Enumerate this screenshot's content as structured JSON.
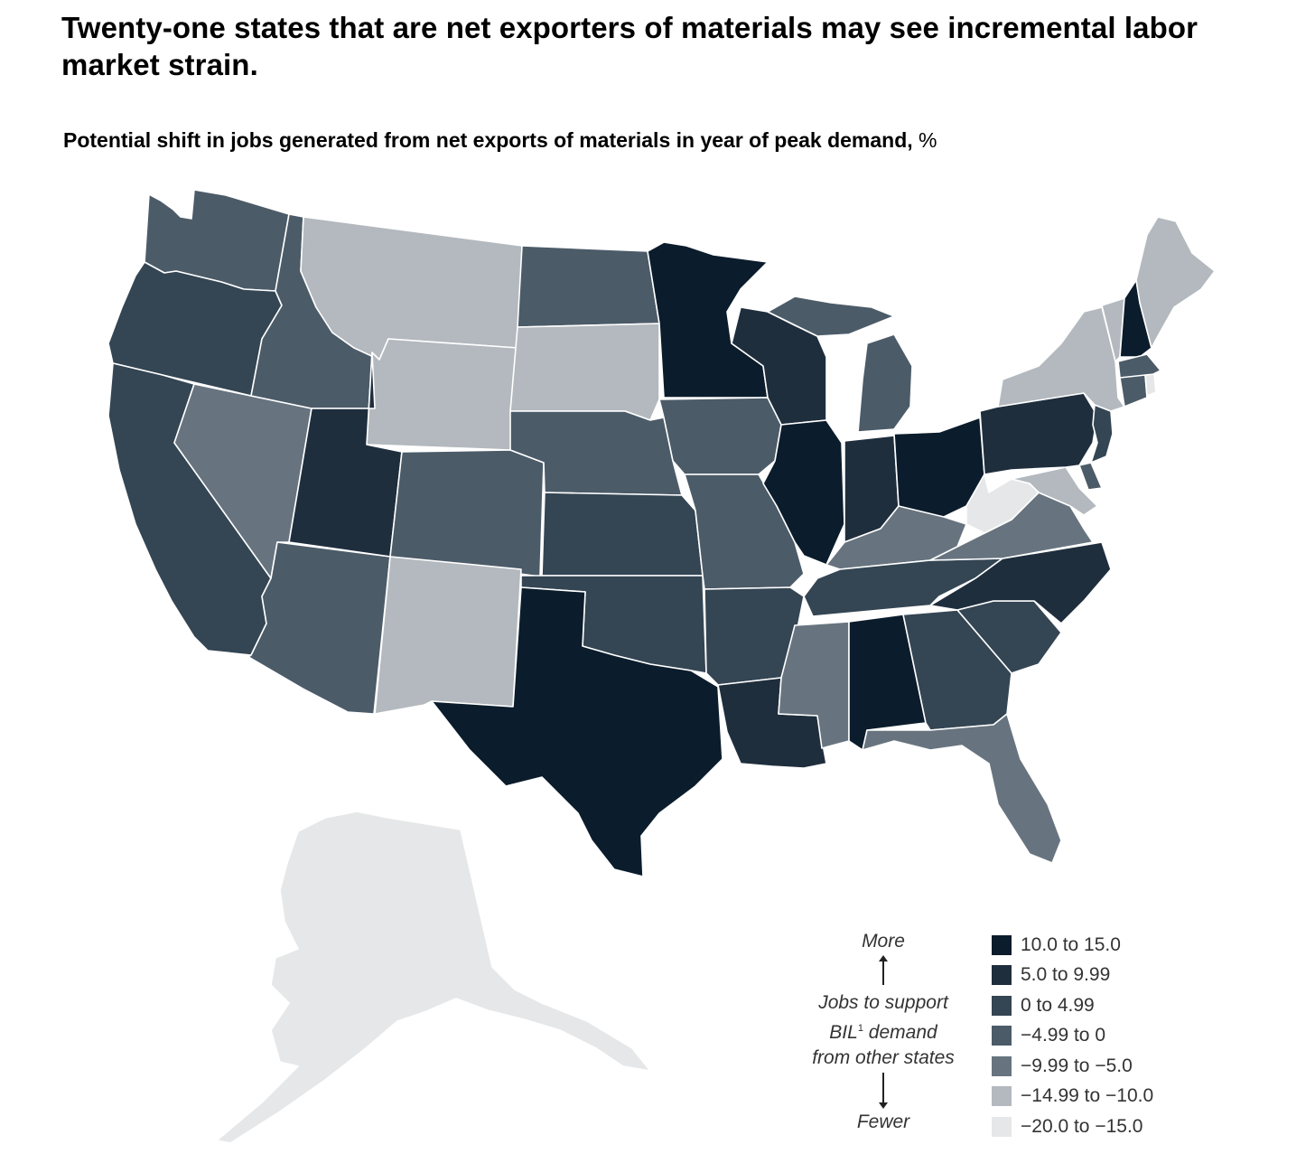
{
  "title": "Twenty-one states that are net exporters of materials may see incremental labor market strain.",
  "subtitle": "Potential shift in jobs generated from net exports of materials in year of peak demand,",
  "subtitle_unit": "%",
  "legend": {
    "more_label": "More",
    "fewer_label": "Fewer",
    "axis_label_line1": "Jobs to support",
    "axis_label_line2_a": "BIL",
    "axis_label_line2_sup": "1",
    "axis_label_line2_b": " demand",
    "axis_label_line3": "from other states",
    "items": [
      {
        "label": "10.0 to 15.0",
        "color": "#0b1c2c"
      },
      {
        "label": "5.0 to 9.99",
        "color": "#1f2e3d"
      },
      {
        "label": "0 to 4.99",
        "color": "#344553"
      },
      {
        "label": "−4.99 to 0",
        "color": "#4c5b68"
      },
      {
        "label": "−9.99 to −5.0",
        "color": "#67747f"
      },
      {
        "label": "−14.99 to −10.0",
        "color": "#b3b9be"
      },
      {
        "label": "−20.0 to −15.0",
        "color": "#e6e7e8"
      }
    ]
  }
}
